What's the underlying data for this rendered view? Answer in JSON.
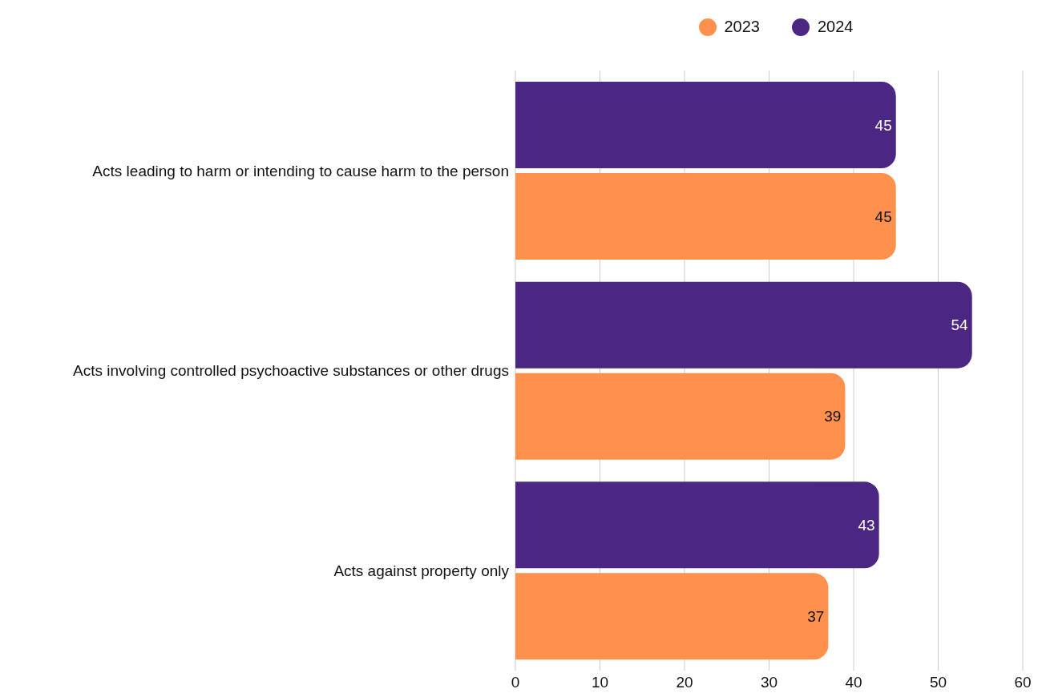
{
  "chart_data": {
    "type": "bar",
    "orientation": "horizontal",
    "categories": [
      "Acts leading to harm or intending to cause harm to the person",
      "Acts involving controlled psychoactive substances or other drugs",
      "Acts against property only"
    ],
    "series": [
      {
        "name": "2024",
        "color": "#4b2683",
        "values": [
          45,
          54,
          43
        ]
      },
      {
        "name": "2023",
        "color": "#ff914d",
        "values": [
          45,
          39,
          37
        ]
      }
    ],
    "xlim": [
      0,
      60
    ],
    "xticks": [
      0,
      10,
      20,
      30,
      40,
      50,
      60
    ],
    "grid": "x",
    "legend": "top",
    "data_labels": true
  }
}
